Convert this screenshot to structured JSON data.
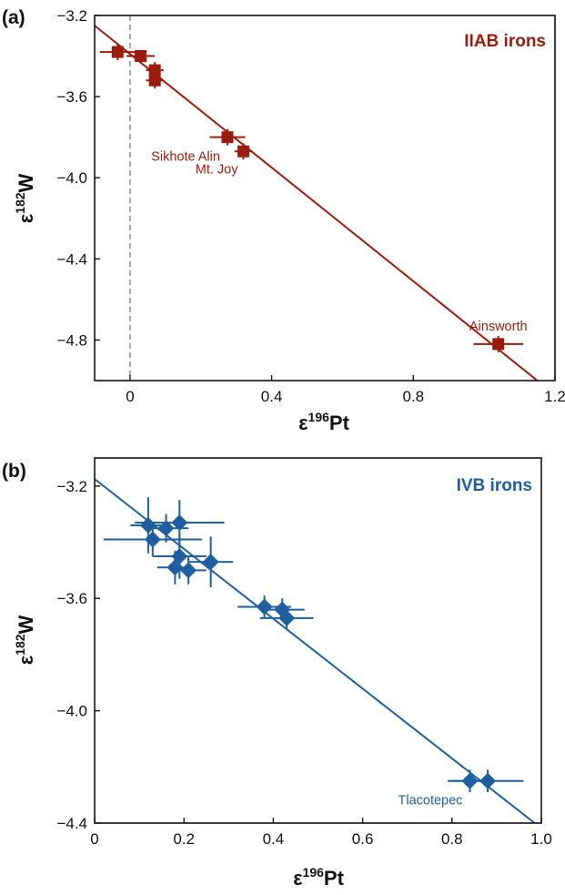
{
  "chart_data": [
    {
      "panel": "(a)",
      "type": "scatter",
      "title": "IIAB irons",
      "xlabel": {
        "base": "ε",
        "sup": "196",
        "rest": "Pt"
      },
      "ylabel": {
        "base": "ε",
        "sup": "182",
        "rest": "W"
      },
      "xlim": [
        -0.1,
        1.2
      ],
      "ylim": [
        -5.0,
        -3.2
      ],
      "xticks": [
        0,
        0.4,
        0.8,
        1.2
      ],
      "xtick_labels": [
        "0",
        "0.4",
        "0.8",
        "1.2"
      ],
      "yticks": [
        -3.2,
        -3.6,
        -4.0,
        -4.4,
        -4.8
      ],
      "ytick_labels": [
        "−3.2",
        "−3.6",
        "−4.0",
        "−4.4",
        "−4.8"
      ],
      "color": "#9b1c0c",
      "marker": "square",
      "points": [
        {
          "x": -0.035,
          "y": -3.38,
          "xerr": 0.05,
          "yerr": 0.04
        },
        {
          "x": 0.03,
          "y": -3.4,
          "xerr": 0.04,
          "yerr": 0.03
        },
        {
          "x": 0.07,
          "y": -3.47,
          "xerr": 0.025,
          "yerr": 0.04
        },
        {
          "x": 0.07,
          "y": -3.52,
          "xerr": 0.025,
          "yerr": 0.04
        },
        {
          "x": 0.275,
          "y": -3.8,
          "xerr": 0.05,
          "yerr": 0.04
        },
        {
          "x": 0.32,
          "y": -3.87,
          "xerr": 0.025,
          "yerr": 0.04
        },
        {
          "x": 1.04,
          "y": -4.82,
          "xerr": 0.07,
          "yerr": 0.04
        }
      ],
      "fit_line": {
        "x": [
          -0.1,
          1.15
        ],
        "y": [
          -3.25,
          -5.0
        ]
      },
      "reference_line_x": 0,
      "annotations": [
        {
          "text": "Sikhote Alin",
          "x": 0.275,
          "y": -3.8
        },
        {
          "text": "Mt. Joy",
          "x": 0.32,
          "y": -3.87
        },
        {
          "text": "Ainsworth",
          "x": 1.04,
          "y": -4.82
        }
      ]
    },
    {
      "panel": "(b)",
      "type": "scatter",
      "title": "IVB irons",
      "xlabel": {
        "base": "ε",
        "sup": "196",
        "rest": "Pt"
      },
      "ylabel": {
        "base": "ε",
        "sup": "182",
        "rest": "W"
      },
      "xlim": [
        0,
        1.0
      ],
      "ylim": [
        -4.4,
        -3.1
      ],
      "xticks": [
        0,
        0.2,
        0.4,
        0.6,
        0.8,
        1.0
      ],
      "xtick_labels": [
        "0",
        "0.2",
        "0.4",
        "0.6",
        "0.8",
        "1.0"
      ],
      "yticks": [
        -3.2,
        -3.6,
        -4.0,
        -4.4
      ],
      "ytick_labels": [
        "−3.2",
        "−3.6",
        "−4.0",
        "−4.4"
      ],
      "color": "#1f5fa0",
      "marker": "diamond",
      "points": [
        {
          "x": 0.12,
          "y": -3.34,
          "xerr": 0.04,
          "yerr": 0.1
        },
        {
          "x": 0.13,
          "y": -3.39,
          "xerr": 0.11,
          "yerr": 0.06
        },
        {
          "x": 0.16,
          "y": -3.35,
          "xerr": 0.05,
          "yerr": 0.05
        },
        {
          "x": 0.19,
          "y": -3.33,
          "xerr": 0.1,
          "yerr": 0.08
        },
        {
          "x": 0.19,
          "y": -3.45,
          "xerr": 0.06,
          "yerr": 0.08
        },
        {
          "x": 0.18,
          "y": -3.49,
          "xerr": 0.04,
          "yerr": 0.06
        },
        {
          "x": 0.21,
          "y": -3.5,
          "xerr": 0.04,
          "yerr": 0.05
        },
        {
          "x": 0.26,
          "y": -3.47,
          "xerr": 0.05,
          "yerr": 0.09
        },
        {
          "x": 0.38,
          "y": -3.63,
          "xerr": 0.06,
          "yerr": 0.04
        },
        {
          "x": 0.42,
          "y": -3.64,
          "xerr": 0.05,
          "yerr": 0.04
        },
        {
          "x": 0.43,
          "y": -3.67,
          "xerr": 0.06,
          "yerr": 0.04
        },
        {
          "x": 0.84,
          "y": -4.25,
          "xerr": 0.05,
          "yerr": 0.04
        },
        {
          "x": 0.88,
          "y": -4.25,
          "xerr": 0.08,
          "yerr": 0.04
        }
      ],
      "fit_line": {
        "x": [
          0,
          0.985
        ],
        "y": [
          -3.175,
          -4.4
        ]
      },
      "annotations": [
        {
          "text": "Tlacotepec",
          "x": 0.84,
          "y": -4.25
        }
      ]
    }
  ]
}
